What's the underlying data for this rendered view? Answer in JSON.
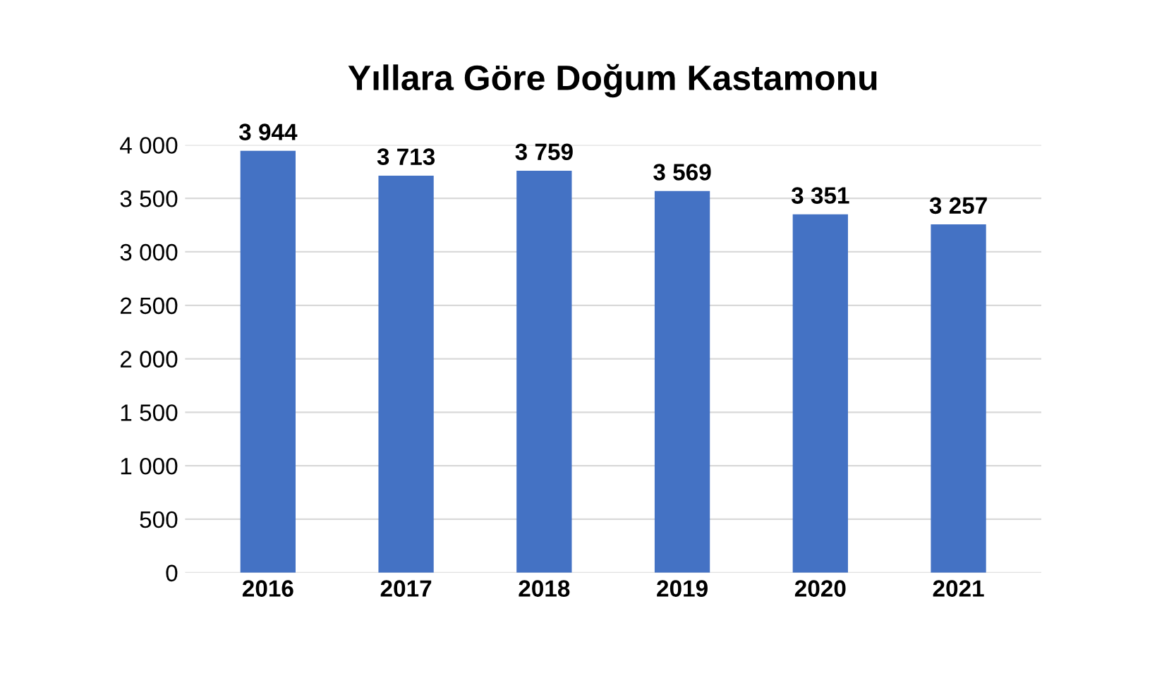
{
  "chart_data": {
    "type": "bar",
    "title": "Yıllara Göre Doğum Kastamonu",
    "categories": [
      "2016",
      "2017",
      "2018",
      "2019",
      "2020",
      "2021"
    ],
    "values": [
      3944,
      3713,
      3759,
      3569,
      3351,
      3257
    ],
    "value_labels": [
      "3 944",
      "3 713",
      "3 759",
      "3 569",
      "3 351",
      "3 257"
    ],
    "color": "#4472c4",
    "ylim": [
      0,
      4000
    ],
    "yticks": [
      {
        "value": 0,
        "label": "0"
      },
      {
        "value": 500,
        "label": "500"
      },
      {
        "value": 1000,
        "label": "1 000"
      },
      {
        "value": 1500,
        "label": "1 500"
      },
      {
        "value": 2000,
        "label": "2 000"
      },
      {
        "value": 2500,
        "label": "2 500"
      },
      {
        "value": 3000,
        "label": "3 000"
      },
      {
        "value": 3500,
        "label": "3 500"
      },
      {
        "value": 4000,
        "label": "4 000"
      }
    ],
    "grid": "y"
  }
}
